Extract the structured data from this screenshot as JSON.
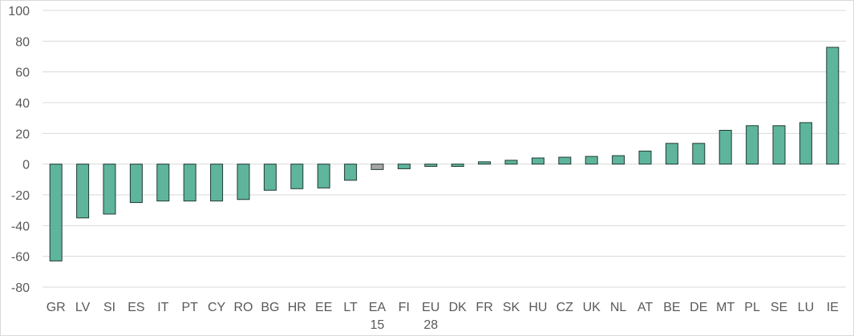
{
  "chart_data": {
    "type": "bar",
    "title": "",
    "xlabel": "",
    "ylabel": "",
    "ylim": [
      -80,
      100
    ],
    "yticks": [
      100,
      80,
      60,
      40,
      20,
      0,
      -20,
      -40,
      -60,
      -80
    ],
    "grid": true,
    "legend": "none",
    "categories": [
      [
        "GR"
      ],
      [
        "LV"
      ],
      [
        "SI"
      ],
      [
        "ES"
      ],
      [
        "IT"
      ],
      [
        "PT"
      ],
      [
        "CY"
      ],
      [
        "RO"
      ],
      [
        "BG"
      ],
      [
        "HR"
      ],
      [
        "EE"
      ],
      [
        "LT"
      ],
      [
        "EA",
        "15"
      ],
      [
        "FI"
      ],
      [
        "EU",
        "28"
      ],
      [
        "DK"
      ],
      [
        "FR"
      ],
      [
        "SK"
      ],
      [
        "HU"
      ],
      [
        "CZ"
      ],
      [
        "UK"
      ],
      [
        "NL"
      ],
      [
        "AT"
      ],
      [
        "BE"
      ],
      [
        "DE"
      ],
      [
        "MT"
      ],
      [
        "PL"
      ],
      [
        "SE"
      ],
      [
        "LU"
      ],
      [
        "IE"
      ]
    ],
    "values": [
      -63,
      -35,
      -32.5,
      -25,
      -24,
      -24,
      -24,
      -23,
      -17,
      -16,
      -15.5,
      -10.5,
      -3.5,
      -3,
      -1.5,
      -1.5,
      1.5,
      2.5,
      4,
      4.5,
      5,
      5.5,
      8.5,
      13.5,
      13.5,
      22,
      25,
      25,
      27,
      76
    ],
    "colors": {
      "bar": "#5fb49c",
      "bar_highlight": "#a6a6a6",
      "bar_stroke": "#1f3b33",
      "grid": "#d9d9d9",
      "axis_text": "#595959"
    },
    "highlight_categories": [
      "EA"
    ]
  }
}
